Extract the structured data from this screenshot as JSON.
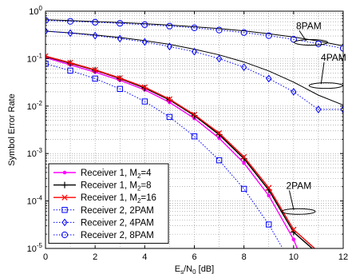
{
  "chart_data": {
    "type": "line",
    "xlabel": "E_s/N_0 [dB]",
    "ylabel": "Symbol Error Rate",
    "xlim": [
      0,
      12
    ],
    "ylim": [
      1e-05,
      1
    ],
    "y_scale": "log",
    "grid": true,
    "legend_position": "lower-left",
    "x_ticks": [
      "0",
      "2",
      "4",
      "6",
      "8",
      "10",
      "12"
    ],
    "y_ticks": [
      "10^-5",
      "10^-4",
      "10^-3",
      "10^-2",
      "10^-1",
      "10^0"
    ],
    "series": [
      {
        "name": "Receiver 1, M_2=4",
        "color": "#ff00ff",
        "marker": "dot",
        "line": "solid",
        "x": [
          0,
          1,
          2,
          3,
          4,
          5,
          6,
          7,
          8,
          9,
          10,
          10.5,
          10.8
        ],
        "y": [
          0.105,
          0.074,
          0.052,
          0.035,
          0.022,
          0.012,
          0.0055,
          0.0021,
          0.00063,
          0.00013,
          1.55e-05,
          3.5e-06,
          1e-05
        ]
      },
      {
        "name": "Receiver 1, M_2=8",
        "color": "#000000",
        "marker": "plus",
        "line": "solid",
        "x": [
          0,
          1,
          2,
          3,
          4,
          5,
          6,
          7,
          8,
          9,
          10,
          10.75
        ],
        "y": [
          0.11,
          0.08,
          0.057,
          0.038,
          0.024,
          0.0135,
          0.0063,
          0.0025,
          0.00078,
          0.00017,
          2.2e-05,
          1e-05
        ]
      },
      {
        "name": "Receiver 1, M_2=16",
        "color": "#ff0000",
        "marker": "x",
        "line": "solid",
        "x": [
          0,
          1,
          2,
          3,
          4,
          5,
          6,
          7,
          8,
          9,
          10,
          10.85
        ],
        "y": [
          0.113,
          0.082,
          0.058,
          0.039,
          0.025,
          0.014,
          0.0066,
          0.0027,
          0.00085,
          0.00019,
          2.5e-05,
          1e-05
        ]
      },
      {
        "name": "Receiver 2, 2PAM",
        "color": "#0000ff",
        "marker": "square",
        "line": "dotted",
        "x": [
          0,
          1,
          2,
          3,
          4,
          5,
          6,
          7,
          8,
          9,
          10
        ],
        "y": [
          0.078,
          0.056,
          0.038,
          0.023,
          0.0125,
          0.0059,
          0.0023,
          0.00072,
          0.00018,
          3.2e-05,
          4e-06
        ]
      },
      {
        "name": "Receiver 2, 4PAM",
        "color": "#0000ff",
        "marker": "diamond",
        "line": "dotted",
        "x": [
          0,
          1,
          2,
          3,
          4,
          5,
          6,
          7,
          8,
          9,
          10,
          11,
          12
        ],
        "y": [
          0.38,
          0.345,
          0.305,
          0.265,
          0.225,
          0.18,
          0.14,
          0.1,
          0.066,
          0.038,
          0.02,
          0.0085,
          0.0085
        ]
      },
      {
        "name": "Receiver 2, 8PAM",
        "color": "#0000ff",
        "marker": "circle",
        "line": "dotted",
        "x": [
          0,
          1,
          2,
          3,
          4,
          5,
          6,
          7,
          8,
          9,
          10,
          11,
          12
        ],
        "y": [
          0.64,
          0.61,
          0.585,
          0.555,
          0.52,
          0.485,
          0.445,
          0.4,
          0.355,
          0.305,
          0.255,
          0.205,
          0.165
        ]
      }
    ],
    "reference_curves": [
      {
        "color": "#000000",
        "x": [
          0,
          1,
          2,
          3,
          4,
          5,
          6,
          7,
          8,
          9,
          10,
          11,
          12
        ],
        "y": [
          0.38,
          0.35,
          0.315,
          0.28,
          0.24,
          0.2,
          0.158,
          0.12,
          0.085,
          0.055,
          0.032,
          0.017,
          0.0105
        ]
      },
      {
        "color": "#000000",
        "x": [
          0,
          1,
          2,
          3,
          4,
          5,
          6,
          7,
          8,
          9,
          10,
          11,
          12
        ],
        "y": [
          0.66,
          0.635,
          0.605,
          0.575,
          0.545,
          0.51,
          0.47,
          0.43,
          0.385,
          0.335,
          0.285,
          0.235,
          0.185
        ]
      }
    ],
    "annotations": [
      {
        "text": "8PAM",
        "x": 10.1,
        "y": 0.42,
        "ellipse_x": 10.7,
        "ellipse_y": 0.22,
        "arrow_to_x": 10.85,
        "arrow_to_y": 0.25
      },
      {
        "text": "4PAM",
        "x": 11.1,
        "y": 0.09,
        "ellipse_x": 11.3,
        "ellipse_y": 0.027,
        "arrow_to_x": 11.55,
        "arrow_to_y": 0.03
      },
      {
        "text": "2PAM",
        "x": 9.7,
        "y": 0.00018,
        "ellipse_x": 10.2,
        "ellipse_y": 6e-05,
        "arrow_to_x": 10.2,
        "arrow_to_y": 9e-05
      }
    ]
  }
}
